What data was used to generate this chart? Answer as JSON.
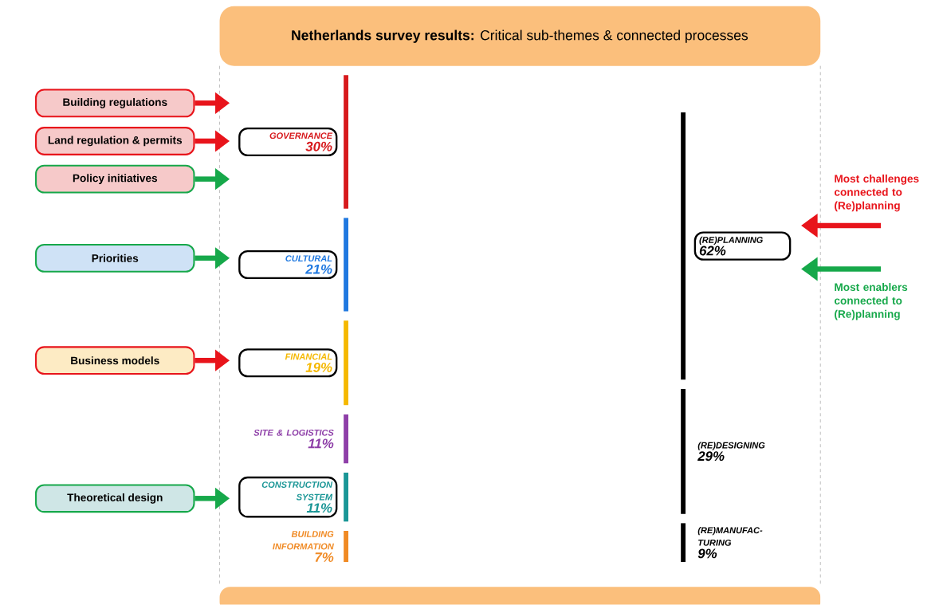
{
  "chart_data": {
    "type": "other",
    "title": "**Netherlands survey results:** Critical sub-themes & connected processes",
    "categories": [
      "GOVERNANCE",
      "CULTURAL",
      "FINANCIAL",
      "SITE & LOGISTICS",
      "CONSTRUCTION SYSTEM",
      "BUILDING INFORMATION",
      "(RE)PLANNING",
      "(RE)DESIGNING",
      "(RE)MANUFAC-TURING"
    ],
    "values": [
      30,
      21,
      19,
      11,
      11,
      7,
      62,
      29,
      9
    ],
    "value_labels": [
      "30%",
      "21%",
      "19%",
      "11%",
      "11%",
      "7%",
      "62%",
      "29%",
      "9%"
    ],
    "colors": [
      "#d7191c",
      "#1f78e0",
      "#f5b800",
      "#8e3fa8",
      "#1a9696",
      "#f08a24",
      "#000000",
      "#000000",
      "#000000"
    ],
    "annotations": [
      "Building regulations",
      "Land regulation & permits",
      "Policy initiatives",
      "Priorities",
      "Business models",
      "Theoretical design",
      "Most challenges connected to (Re)planning",
      "Most enablers connected to (Re)planning"
    ]
  }
}
